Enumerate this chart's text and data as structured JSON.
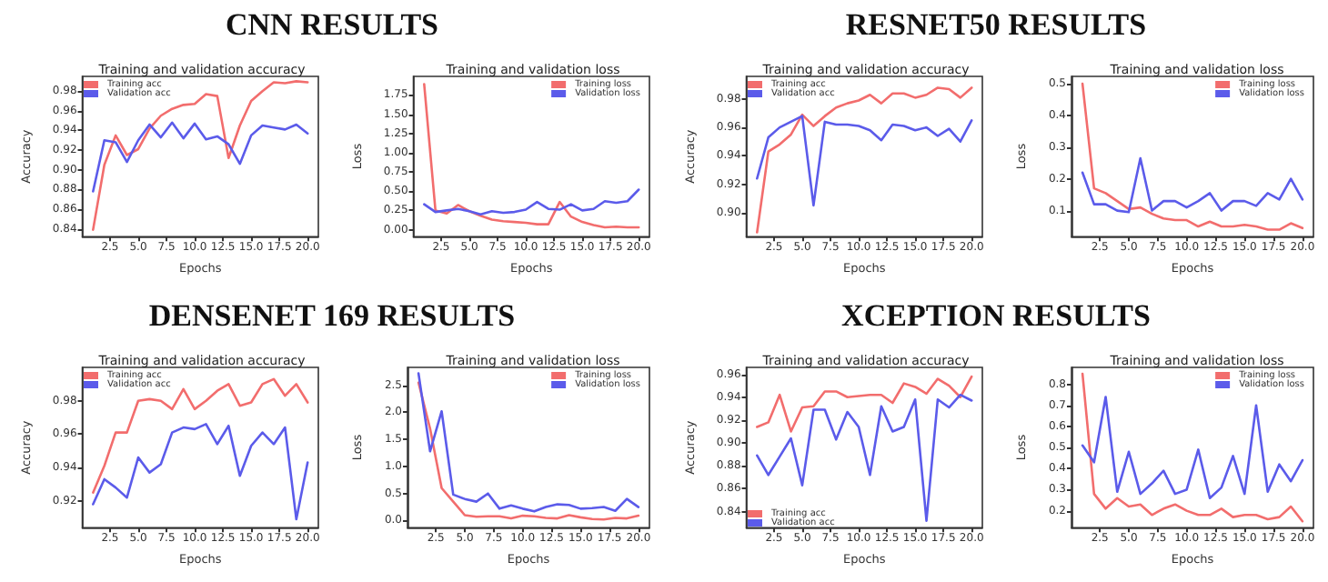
{
  "chart_data": [
    {
      "type": "line",
      "annotations": [
        "CNN RESULTS"
      ],
      "title": "Training and validation accuracy",
      "xlabel": "Epochs",
      "ylabel": "Accuracy",
      "legend": "top left",
      "grid": false,
      "x": [
        1,
        2,
        3,
        4,
        5,
        6,
        7,
        8,
        9,
        10,
        11,
        12,
        13,
        14,
        15,
        16,
        17,
        18,
        19,
        20
      ],
      "xlim": [
        0.05,
        20.95
      ],
      "xticks": [
        2.5,
        {
          "value": 5,
          "label": "5.0"
        },
        7.5,
        {
          "value": 10,
          "label": "10.0"
        },
        12.5,
        {
          "value": 15,
          "label": "15.0"
        },
        17.5,
        {
          "value": 20,
          "label": "20.0"
        }
      ],
      "ylim": [
        0.832,
        0.995
      ],
      "yticks": [
        0.84,
        0.86,
        0.88,
        {
          "value": 0.9,
          "label": "0.90"
        },
        0.92,
        0.94,
        0.96,
        0.98
      ],
      "series": [
        {
          "name": "Training acc",
          "color": "#f26d6d",
          "values": [
            0.839,
            0.905,
            0.935,
            0.915,
            0.921,
            0.942,
            0.955,
            0.962,
            0.966,
            0.967,
            0.977,
            0.975,
            0.912,
            0.945,
            0.97,
            0.98,
            0.989,
            0.988,
            0.99,
            0.989
          ]
        },
        {
          "name": "Validation acc",
          "color": "#5b5bea",
          "values": [
            0.878,
            0.93,
            0.928,
            0.908,
            0.93,
            0.946,
            0.933,
            0.948,
            0.932,
            0.947,
            0.931,
            0.934,
            0.926,
            0.906,
            0.935,
            0.945,
            0.943,
            0.941,
            0.946,
            0.937
          ]
        }
      ]
    },
    {
      "type": "line",
      "title": "Training and validation loss",
      "xlabel": "Epochs",
      "ylabel": "Loss",
      "legend": "top right",
      "grid": false,
      "x": [
        1,
        2,
        3,
        4,
        5,
        6,
        7,
        8,
        9,
        10,
        11,
        12,
        13,
        14,
        15,
        16,
        17,
        18,
        19,
        20
      ],
      "xlim": [
        0.05,
        20.95
      ],
      "xticks": [
        2.5,
        {
          "value": 5,
          "label": "5.0"
        },
        7.5,
        {
          "value": 10,
          "label": "10.0"
        },
        12.5,
        {
          "value": 15,
          "label": "15.0"
        },
        17.5,
        {
          "value": 20,
          "label": "20.0"
        }
      ],
      "ylim": [
        -0.09,
        1.99
      ],
      "yticks": [
        {
          "value": 0,
          "label": "0.00"
        },
        0.25,
        {
          "value": 0.5,
          "label": "0.50"
        },
        0.75,
        {
          "value": 1,
          "label": "1.00"
        },
        1.25,
        {
          "value": 1.5,
          "label": "1.50"
        },
        1.75
      ],
      "series": [
        {
          "name": "Training loss",
          "color": "#f26d6d",
          "values": [
            1.89,
            0.25,
            0.21,
            0.32,
            0.24,
            0.18,
            0.13,
            0.11,
            0.1,
            0.09,
            0.07,
            0.07,
            0.36,
            0.17,
            0.1,
            0.06,
            0.03,
            0.04,
            0.03,
            0.03
          ]
        },
        {
          "name": "Validation loss",
          "color": "#5b5bea",
          "values": [
            0.33,
            0.23,
            0.25,
            0.27,
            0.24,
            0.2,
            0.24,
            0.22,
            0.23,
            0.26,
            0.36,
            0.27,
            0.26,
            0.33,
            0.25,
            0.27,
            0.37,
            0.35,
            0.37,
            0.52
          ]
        }
      ]
    },
    {
      "type": "line",
      "annotations": [
        "RESNET50 RESULTS"
      ],
      "title": "Training and validation accuracy",
      "xlabel": "Epochs",
      "ylabel": "Accuracy",
      "legend": "top left",
      "grid": false,
      "x": [
        1,
        2,
        3,
        4,
        5,
        6,
        7,
        8,
        9,
        10,
        11,
        12,
        13,
        14,
        15,
        16,
        17,
        18,
        19,
        20
      ],
      "xlim": [
        0.05,
        20.95
      ],
      "xticks": [
        2.5,
        {
          "value": 5,
          "label": "5.0"
        },
        7.5,
        {
          "value": 10,
          "label": "10.0"
        },
        12.5,
        {
          "value": 15,
          "label": "15.0"
        },
        17.5,
        {
          "value": 20,
          "label": "20.0"
        }
      ],
      "ylim": [
        0.883,
        0.996
      ],
      "yticks": [
        {
          "value": 0.9,
          "label": "0.90"
        },
        0.92,
        0.94,
        0.96,
        0.98
      ],
      "series": [
        {
          "name": "Training acc",
          "color": "#f26d6d",
          "values": [
            0.886,
            0.943,
            0.948,
            0.955,
            0.969,
            0.961,
            0.968,
            0.974,
            0.977,
            0.979,
            0.983,
            0.977,
            0.984,
            0.984,
            0.981,
            0.983,
            0.988,
            0.987,
            0.981,
            0.988
          ]
        },
        {
          "name": "Validation acc",
          "color": "#5b5bea",
          "values": [
            0.924,
            0.953,
            0.96,
            0.964,
            0.968,
            0.905,
            0.964,
            0.962,
            0.962,
            0.961,
            0.958,
            0.951,
            0.962,
            0.961,
            0.958,
            0.96,
            0.954,
            0.959,
            0.95,
            0.965
          ]
        }
      ]
    },
    {
      "type": "line",
      "title": "Training and validation loss",
      "xlabel": "Epochs",
      "ylabel": "Loss",
      "legend": "top right",
      "grid": false,
      "x": [
        1,
        2,
        3,
        4,
        5,
        6,
        7,
        8,
        9,
        10,
        11,
        12,
        13,
        14,
        15,
        16,
        17,
        18,
        19,
        20
      ],
      "xlim": [
        0.05,
        20.95
      ],
      "xticks": [
        2.5,
        {
          "value": 5,
          "label": "5.0"
        },
        7.5,
        {
          "value": 10,
          "label": "10.0"
        },
        12.5,
        {
          "value": 15,
          "label": "15.0"
        },
        17.5,
        {
          "value": 20,
          "label": "20.0"
        }
      ],
      "ylim": [
        0.018,
        0.523
      ],
      "yticks": [
        0.1,
        0.2,
        0.3,
        0.4,
        0.5
      ],
      "series": [
        {
          "name": "Training loss",
          "color": "#f26d6d",
          "values": [
            0.5,
            0.17,
            0.155,
            0.13,
            0.105,
            0.11,
            0.09,
            0.075,
            0.07,
            0.07,
            0.05,
            0.065,
            0.05,
            0.05,
            0.055,
            0.05,
            0.04,
            0.04,
            0.06,
            0.045
          ]
        },
        {
          "name": "Validation loss",
          "color": "#5b5bea",
          "values": [
            0.22,
            0.12,
            0.12,
            0.1,
            0.095,
            0.265,
            0.1,
            0.13,
            0.13,
            0.11,
            0.13,
            0.155,
            0.1,
            0.13,
            0.13,
            0.115,
            0.155,
            0.135,
            0.2,
            0.135
          ]
        }
      ]
    },
    {
      "type": "line",
      "annotations": [
        "DENSENET 169 RESULTS"
      ],
      "title": "Training and validation accuracy",
      "xlabel": "Epochs",
      "ylabel": "Accuracy",
      "legend": "top left",
      "grid": false,
      "x": [
        1,
        2,
        3,
        4,
        5,
        6,
        7,
        8,
        9,
        10,
        11,
        12,
        13,
        14,
        15,
        16,
        17,
        18,
        19,
        20
      ],
      "xlim": [
        0.05,
        20.95
      ],
      "xticks": [
        2.5,
        {
          "value": 5,
          "label": "5.0"
        },
        7.5,
        {
          "value": 10,
          "label": "10.0"
        },
        12.5,
        {
          "value": 15,
          "label": "15.0"
        },
        17.5,
        {
          "value": 20,
          "label": "20.0"
        }
      ],
      "ylim": [
        0.904,
        1.0
      ],
      "yticks": [
        0.92,
        0.94,
        0.96,
        0.98
      ],
      "series": [
        {
          "name": "Training acc",
          "color": "#f26d6d",
          "values": [
            0.925,
            0.941,
            0.961,
            0.961,
            0.98,
            0.981,
            0.98,
            0.975,
            0.987,
            0.975,
            0.98,
            0.986,
            0.99,
            0.977,
            0.979,
            0.99,
            0.993,
            0.983,
            0.99,
            0.979
          ]
        },
        {
          "name": "Validation acc",
          "color": "#5b5bea",
          "values": [
            0.918,
            0.933,
            0.928,
            0.922,
            0.946,
            0.937,
            0.942,
            0.961,
            0.964,
            0.963,
            0.966,
            0.954,
            0.965,
            0.935,
            0.953,
            0.961,
            0.954,
            0.964,
            0.909,
            0.943
          ]
        }
      ]
    },
    {
      "type": "line",
      "title": "Training and validation loss",
      "xlabel": "Epochs",
      "ylabel": "Loss",
      "legend": "top right",
      "grid": false,
      "x": [
        1,
        2,
        3,
        4,
        5,
        6,
        7,
        8,
        9,
        10,
        11,
        12,
        13,
        14,
        15,
        16,
        17,
        18,
        19,
        20
      ],
      "xlim": [
        0.05,
        20.95
      ],
      "xticks": [
        2.5,
        {
          "value": 5,
          "label": "5.0"
        },
        7.5,
        {
          "value": 10,
          "label": "10.0"
        },
        12.5,
        {
          "value": 15,
          "label": "15.0"
        },
        17.5,
        {
          "value": 20,
          "label": "20.0"
        }
      ],
      "ylim": [
        -0.13,
        2.83
      ],
      "yticks": [
        {
          "value": 0,
          "label": "0.0"
        },
        0.5,
        {
          "value": 1,
          "label": "1.0"
        },
        1.5,
        {
          "value": 2,
          "label": "2.0"
        },
        2.5
      ],
      "series": [
        {
          "name": "Training loss",
          "color": "#f26d6d",
          "values": [
            2.55,
            1.7,
            0.6,
            0.35,
            0.1,
            0.07,
            0.08,
            0.08,
            0.04,
            0.09,
            0.08,
            0.05,
            0.04,
            0.1,
            0.06,
            0.03,
            0.02,
            0.05,
            0.04,
            0.09
          ]
        },
        {
          "name": "Validation loss",
          "color": "#5b5bea",
          "values": [
            2.72,
            1.28,
            2.02,
            0.48,
            0.4,
            0.35,
            0.5,
            0.22,
            0.28,
            0.22,
            0.17,
            0.25,
            0.3,
            0.29,
            0.22,
            0.23,
            0.25,
            0.18,
            0.4,
            0.25
          ]
        }
      ]
    },
    {
      "type": "line",
      "annotations": [
        "XCEPTION RESULTS"
      ],
      "title": "Training and validation accuracy",
      "xlabel": "Epochs",
      "ylabel": "Accuracy",
      "legend": "bottom left",
      "grid": false,
      "x": [
        1,
        2,
        3,
        4,
        5,
        6,
        7,
        8,
        9,
        10,
        11,
        12,
        13,
        14,
        15,
        16,
        17,
        18,
        19,
        20
      ],
      "xlim": [
        0.05,
        20.95
      ],
      "xticks": [
        2.5,
        {
          "value": 5,
          "label": "5.0"
        },
        7.5,
        {
          "value": 10,
          "label": "10.0"
        },
        12.5,
        {
          "value": 15,
          "label": "15.0"
        },
        17.5,
        {
          "value": 20,
          "label": "20.0"
        }
      ],
      "ylim": [
        0.826,
        0.966
      ],
      "yticks": [
        0.84,
        0.86,
        0.88,
        {
          "value": 0.9,
          "label": "0.90"
        },
        0.92,
        0.94,
        0.96
      ],
      "series": [
        {
          "name": "Training acc",
          "color": "#f26d6d",
          "values": [
            0.914,
            0.918,
            0.942,
            0.91,
            0.931,
            0.932,
            0.945,
            0.945,
            0.94,
            0.941,
            0.942,
            0.942,
            0.935,
            0.952,
            0.949,
            0.943,
            0.956,
            0.95,
            0.94,
            0.958
          ]
        },
        {
          "name": "Validation acc",
          "color": "#5b5bea",
          "values": [
            0.889,
            0.872,
            0.888,
            0.904,
            0.863,
            0.929,
            0.929,
            0.903,
            0.927,
            0.914,
            0.872,
            0.932,
            0.91,
            0.914,
            0.938,
            0.832,
            0.938,
            0.931,
            0.942,
            0.937
          ]
        }
      ]
    },
    {
      "type": "line",
      "title": "Training and validation loss",
      "xlabel": "Epochs",
      "ylabel": "Loss",
      "legend": "top right",
      "grid": false,
      "x": [
        1,
        2,
        3,
        4,
        5,
        6,
        7,
        8,
        9,
        10,
        11,
        12,
        13,
        14,
        15,
        16,
        17,
        18,
        19,
        20
      ],
      "xlim": [
        0.05,
        20.95
      ],
      "xticks": [
        2.5,
        {
          "value": 5,
          "label": "5.0"
        },
        7.5,
        {
          "value": 10,
          "label": "10.0"
        },
        12.5,
        {
          "value": 15,
          "label": "15.0"
        },
        17.5,
        {
          "value": 20,
          "label": "20.0"
        }
      ],
      "ylim": [
        0.12,
        0.88
      ],
      "yticks": [
        0.2,
        0.3,
        0.4,
        0.5,
        0.6,
        0.7,
        0.8
      ],
      "series": [
        {
          "name": "Training loss",
          "color": "#f26d6d",
          "values": [
            0.85,
            0.28,
            0.21,
            0.26,
            0.22,
            0.23,
            0.18,
            0.21,
            0.23,
            0.2,
            0.18,
            0.18,
            0.21,
            0.17,
            0.18,
            0.18,
            0.16,
            0.17,
            0.22,
            0.15
          ]
        },
        {
          "name": "Validation loss",
          "color": "#5b5bea",
          "values": [
            0.51,
            0.43,
            0.74,
            0.29,
            0.48,
            0.28,
            0.33,
            0.39,
            0.28,
            0.3,
            0.49,
            0.26,
            0.31,
            0.46,
            0.28,
            0.7,
            0.29,
            0.42,
            0.34,
            0.44
          ]
        }
      ]
    }
  ]
}
